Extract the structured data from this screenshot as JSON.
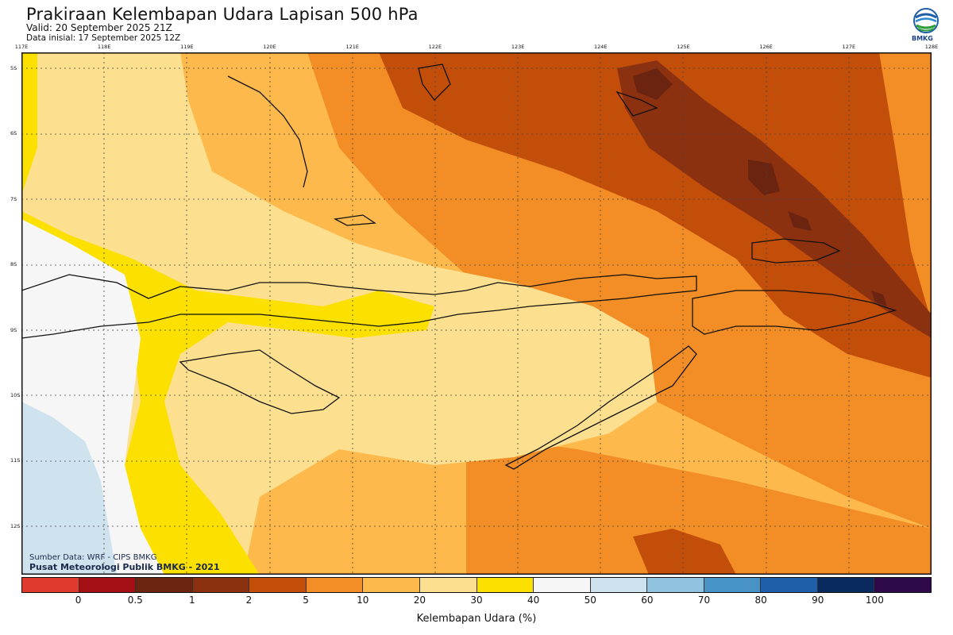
{
  "title": "Prakiraan Kelembapan Udara Lapisan 500 hPa",
  "valid": "Valid: 20 September 2025 21Z",
  "init": "Data inisial: 17 September 2025 12Z",
  "logo_text": "BMKG",
  "lon_labels": [
    "117E",
    "118E",
    "119E",
    "120E",
    "121E",
    "122E",
    "123E",
    "124E",
    "125E",
    "126E",
    "127E",
    "128E"
  ],
  "lat_labels": [
    "5S",
    "6S",
    "7S",
    "8S",
    "9S",
    "10S",
    "11S",
    "12S"
  ],
  "source_line1": "Sumber Data: WRF - CIPS BMKG",
  "source_line2": "Pusat Meteorologi Publik BMKG - 2021",
  "colorbar": {
    "colors": [
      "#e03a2e",
      "#a30f14",
      "#6a2410",
      "#8c3110",
      "#c24e0a",
      "#f38d26",
      "#fdb94c",
      "#fde08f",
      "#fce000",
      "#f6f6f6",
      "#cfe3ef",
      "#90c3e0",
      "#4793c6",
      "#1f5ea8",
      "#0a2a5e",
      "#2e0a4a"
    ],
    "ticks": [
      "0",
      "0.5",
      "1",
      "2",
      "5",
      "10",
      "20",
      "30",
      "40",
      "50",
      "60",
      "70",
      "80",
      "90",
      "100"
    ]
  },
  "colorbar_label": "Kelembapan Udara (%)"
}
